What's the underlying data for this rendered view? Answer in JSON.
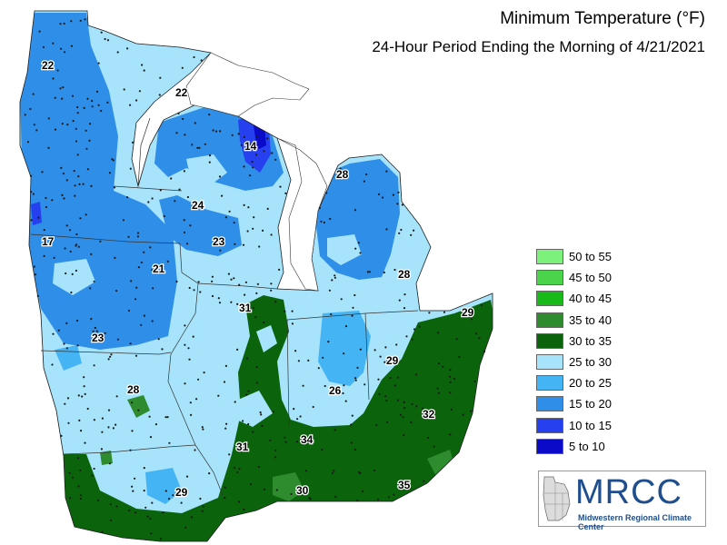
{
  "title": "Minimum Temperature (°F)",
  "subtitle": "24-Hour Period Ending the Morning of 4/21/2021",
  "legend": [
    {
      "label": "50 to 55",
      "color": "#7cf27c"
    },
    {
      "label": "45 to 50",
      "color": "#4cd34c"
    },
    {
      "label": "40 to 45",
      "color": "#19b919"
    },
    {
      "label": "35 to 40",
      "color": "#2e8b2e"
    },
    {
      "label": "30 to 35",
      "color": "#0b640b"
    },
    {
      "label": "25 to 30",
      "color": "#a7e4fc"
    },
    {
      "label": "20 to 25",
      "color": "#45b4f5"
    },
    {
      "label": "15 to 20",
      "color": "#2f8ee8"
    },
    {
      "label": "10 to 15",
      "color": "#2640f0"
    },
    {
      "label": "5 to 10",
      "color": "#0a0ac8"
    }
  ],
  "map_values": [
    "22",
    "22",
    "14",
    "28",
    "24",
    "23",
    "17",
    "21",
    "28",
    "31",
    "29",
    "23",
    "29",
    "28",
    "26",
    "32",
    "34",
    "31",
    "30",
    "35",
    "29"
  ],
  "logo": {
    "name": "MRCC",
    "full_name": "Midwestern Regional Climate Center"
  }
}
